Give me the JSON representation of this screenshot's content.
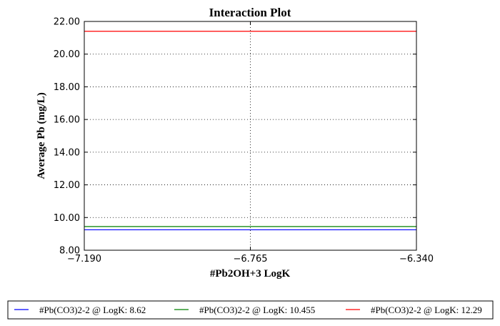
{
  "chart_data": {
    "type": "line",
    "title": "Interaction Plot",
    "xlabel": "#Pb2OH+3 LogK",
    "ylabel": "Average Pb (mg/L)",
    "xlim": [
      -7.19,
      -6.34
    ],
    "ylim": [
      8.0,
      22.0
    ],
    "x_ticks": [
      "−7.190",
      "−6.765",
      "−6.340"
    ],
    "y_ticks": [
      "8.00",
      "10.00",
      "12.00",
      "14.00",
      "16.00",
      "18.00",
      "20.00",
      "22.00"
    ],
    "grid": true,
    "legend_position": "bottom",
    "x": [
      -7.19,
      -6.765,
      -6.34
    ],
    "series": [
      {
        "name": "#Pb(CO3)2-2 @ LogK: 8.62",
        "color": "#0000ff",
        "values": [
          9.25,
          9.25,
          9.25
        ]
      },
      {
        "name": "#Pb(CO3)2-2 @ LogK: 10.455",
        "color": "#008000",
        "values": [
          9.45,
          9.45,
          9.45
        ]
      },
      {
        "name": "#Pb(CO3)2-2 @ LogK: 12.29",
        "color": "#ff0000",
        "values": [
          21.4,
          21.4,
          21.4
        ]
      }
    ]
  }
}
